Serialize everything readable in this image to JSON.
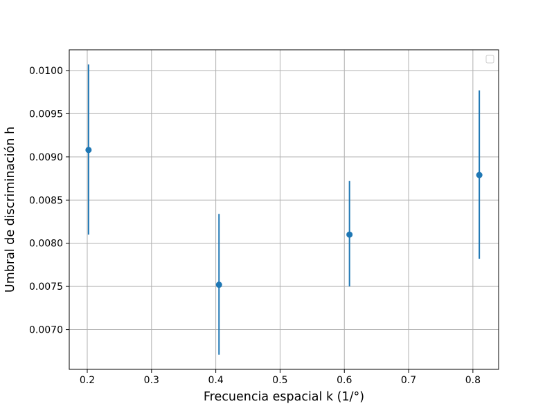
{
  "chart_data": {
    "type": "scatter",
    "title": "",
    "xlabel": "Frecuencia espacial k (1/°)",
    "ylabel": "Umbral de discriminación h",
    "xlim": [
      0.172,
      0.84
    ],
    "ylim": [
      0.00654,
      0.01024
    ],
    "x_ticks": [
      0.2,
      0.3,
      0.4,
      0.5,
      0.6,
      0.7,
      0.8
    ],
    "x_tick_labels": [
      "0.2",
      "0.3",
      "0.4",
      "0.5",
      "0.6",
      "0.7",
      "0.8"
    ],
    "y_ticks": [
      0.007,
      0.0075,
      0.008,
      0.0085,
      0.009,
      0.0095,
      0.01
    ],
    "y_tick_labels": [
      "0.0070",
      "0.0075",
      "0.0080",
      "0.0085",
      "0.0090",
      "0.0095",
      "0.0100"
    ],
    "grid": true,
    "legend": {
      "position": "top-right",
      "entries": []
    },
    "series": [
      {
        "color": "#1f77b4",
        "marker": "circle",
        "error_bars": "vertical",
        "points": [
          {
            "x": 0.202,
            "y": 0.00908,
            "yerr_low": 0.0081,
            "yerr_high": 0.01007
          },
          {
            "x": 0.405,
            "y": 0.00752,
            "yerr_low": 0.00671,
            "yerr_high": 0.00834
          },
          {
            "x": 0.608,
            "y": 0.0081,
            "yerr_low": 0.0075,
            "yerr_high": 0.00872
          },
          {
            "x": 0.81,
            "y": 0.00879,
            "yerr_low": 0.00782,
            "yerr_high": 0.00977
          }
        ]
      }
    ]
  }
}
